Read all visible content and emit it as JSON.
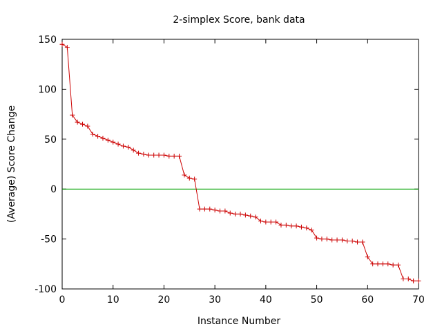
{
  "chart_data": {
    "type": "line",
    "title": "2-simplex Score, bank data",
    "xlabel": "Instance Number",
    "ylabel": "(Average) Score Change",
    "xlim": [
      0,
      70
    ],
    "ylim": [
      -100,
      150
    ],
    "xticks": [
      0,
      10,
      20,
      30,
      40,
      50,
      60,
      70
    ],
    "yticks": [
      -100,
      -50,
      0,
      50,
      100,
      150
    ],
    "grid": false,
    "legend": "none",
    "series": [
      {
        "color": "#cc0000",
        "marker": "plus",
        "x": [
          0,
          1,
          2,
          3,
          4,
          5,
          6,
          7,
          8,
          9,
          10,
          11,
          12,
          13,
          14,
          15,
          16,
          17,
          18,
          19,
          20,
          21,
          22,
          23,
          24,
          25,
          26,
          27,
          28,
          29,
          30,
          31,
          32,
          33,
          34,
          35,
          36,
          37,
          38,
          39,
          40,
          41,
          42,
          43,
          44,
          45,
          46,
          47,
          48,
          49,
          50,
          51,
          52,
          53,
          54,
          55,
          56,
          57,
          58,
          59,
          60,
          61,
          62,
          63,
          64,
          65,
          66,
          67,
          68,
          69,
          70
        ],
        "y": [
          145,
          142,
          74,
          67,
          65,
          63,
          55,
          53,
          51,
          49,
          47,
          45,
          43,
          42,
          39,
          36,
          35,
          34,
          34,
          34,
          34,
          33,
          33,
          33,
          14,
          11,
          10,
          -20,
          -20,
          -20,
          -21,
          -22,
          -22,
          -24,
          -25,
          -25,
          -26,
          -27,
          -28,
          -32,
          -33,
          -33,
          -33,
          -36,
          -36,
          -37,
          -37,
          -38,
          -39,
          -41,
          -49,
          -50,
          -50,
          -51,
          -51,
          -51,
          -52,
          -52,
          -53,
          -53,
          -68,
          -75,
          -75,
          -75,
          -75,
          -76,
          -76,
          -90,
          -90,
          -92,
          -92
        ]
      }
    ],
    "reference_line": {
      "y": 0,
      "color": "#00a000"
    }
  }
}
